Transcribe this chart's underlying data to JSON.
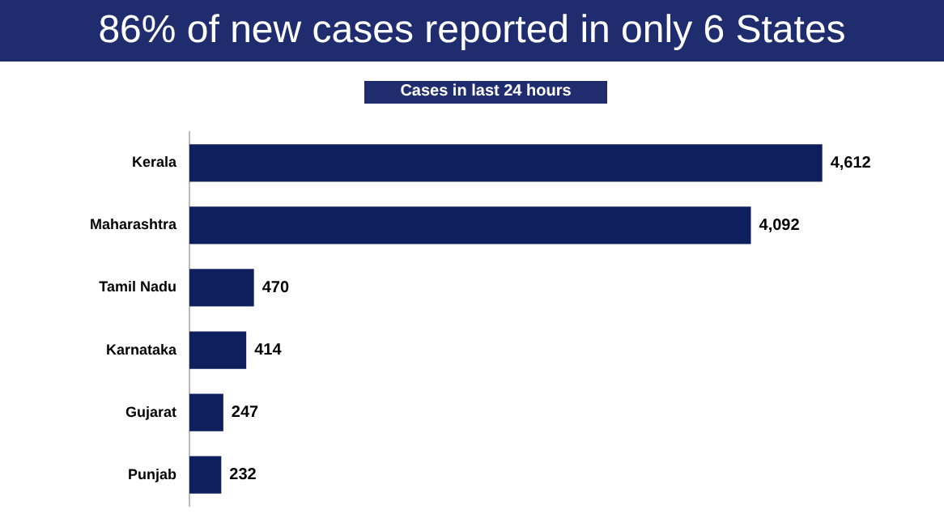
{
  "chart_data": {
    "type": "bar",
    "title": "86% of new cases reported in only 6 States",
    "subtitle": "Cases in last 24 hours",
    "orientation": "horizontal",
    "categories": [
      "Kerala",
      "Maharashtra",
      "Tamil Nadu",
      "Karnataka",
      "Gujarat",
      "Punjab"
    ],
    "series": [
      {
        "color": "#0f1f5e",
        "values": [
          4612,
          4092,
          470,
          414,
          247,
          232
        ],
        "value_labels": [
          "4,612",
          "4,092",
          "470",
          "414",
          "247",
          "232"
        ]
      }
    ],
    "grid": false,
    "legend": false
  }
}
